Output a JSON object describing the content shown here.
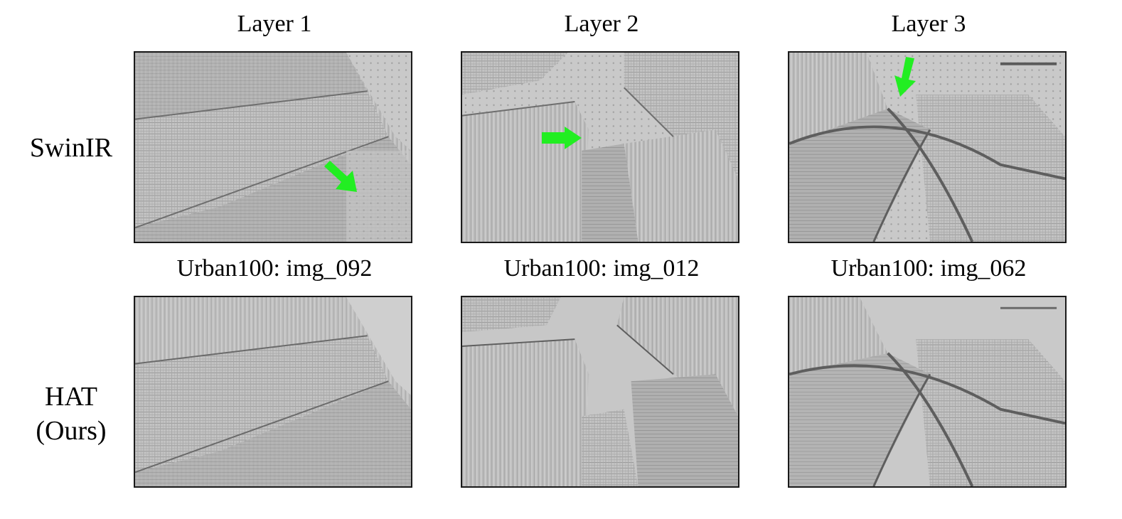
{
  "columns": [
    "Layer 1",
    "Layer 2",
    "Layer 3"
  ],
  "rows": [
    {
      "label_lines": [
        "SwinIR"
      ]
    },
    {
      "label_lines": [
        "HAT",
        "(Ours)"
      ]
    }
  ],
  "captions": [
    "Urban100: img_092",
    "Urban100: img_012",
    "Urban100: img_062"
  ],
  "colors": {
    "arrow": "#22ee22",
    "border": "#1a1a1a",
    "panel_bg": "#b9b9b9"
  }
}
